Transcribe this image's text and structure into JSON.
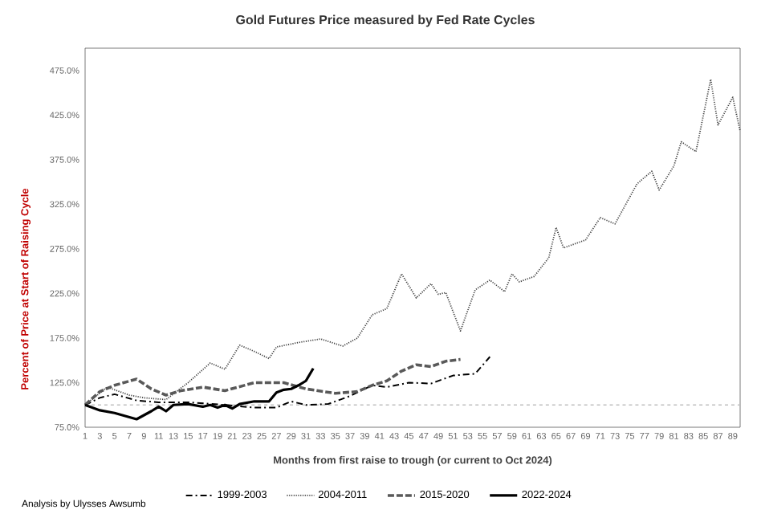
{
  "chart_data": {
    "type": "line",
    "title": "Gold Futures Price measured by Fed Rate Cycles",
    "xlabel": "Months from first raise to trough (or current to Oct 2024)",
    "ylabel": "Percent of Price at Start of Raising Cycle",
    "annotations": [
      "Analysis by Ulysses Awsumb"
    ],
    "xlim": [
      1,
      90
    ],
    "xticks": [
      1,
      3,
      5,
      7,
      9,
      11,
      13,
      15,
      17,
      19,
      21,
      23,
      25,
      27,
      29,
      31,
      33,
      35,
      37,
      39,
      41,
      43,
      45,
      47,
      49,
      51,
      53,
      55,
      57,
      59,
      61,
      63,
      65,
      67,
      69,
      71,
      73,
      75,
      77,
      79,
      81,
      83,
      85,
      87,
      89
    ],
    "ylim": [
      75,
      500
    ],
    "yticks": [
      {
        "value": 75,
        "label": "75.0%"
      },
      {
        "value": 125,
        "label": "125.0%"
      },
      {
        "value": 175,
        "label": "175.0%"
      },
      {
        "value": 225,
        "label": "225.0%"
      },
      {
        "value": 275,
        "label": "275.0%"
      },
      {
        "value": 325,
        "label": "325.0%"
      },
      {
        "value": 375,
        "label": "375.0%"
      },
      {
        "value": 425,
        "label": "425.0%"
      },
      {
        "value": 475,
        "label": "475.0%"
      }
    ],
    "ref_lines": [
      {
        "axis": "y",
        "value": 100,
        "color": "#bfbfbf",
        "line_style": "dashed"
      }
    ],
    "legend": "bottom",
    "grid": false,
    "marker": "none",
    "series": [
      {
        "name": "1999-2003",
        "color": "#000000",
        "line_style": "dashdot",
        "x": [
          1,
          3,
          5,
          8,
          11,
          15,
          20,
          24,
          27,
          29,
          31,
          34,
          37,
          40,
          42,
          45,
          48,
          51,
          54,
          56
        ],
        "values": [
          100,
          108,
          112,
          105,
          103,
          103,
          100,
          97,
          97,
          104,
          100,
          101,
          110,
          122,
          120,
          125,
          124,
          133,
          135,
          154
        ]
      },
      {
        "name": "2004-2011",
        "color": "#404040",
        "line_style": "dotted",
        "x": [
          1,
          4,
          7,
          9,
          12,
          15,
          18,
          20,
          22,
          24,
          26,
          27,
          30,
          33,
          36,
          38,
          40,
          42,
          44,
          46,
          48,
          49,
          50,
          52,
          54,
          56,
          58,
          59,
          60,
          62,
          64,
          65,
          66,
          69,
          71,
          73,
          76,
          78,
          79,
          81,
          82,
          84,
          86,
          87,
          89,
          90
        ],
        "values": [
          100,
          120,
          111,
          108,
          106,
          125,
          147,
          140,
          167,
          160,
          152,
          165,
          170,
          174,
          166,
          175,
          201,
          208,
          247,
          220,
          236,
          224,
          226,
          183,
          229,
          240,
          227,
          247,
          238,
          244,
          265,
          299,
          276,
          285,
          310,
          303,
          348,
          362,
          341,
          368,
          395,
          384,
          465,
          414,
          445,
          407
        ]
      },
      {
        "name": "2015-2020",
        "color": "#595959",
        "line_style": "dashed",
        "x": [
          1,
          3,
          5,
          8,
          10,
          12,
          14,
          17,
          20,
          24,
          28,
          31,
          35,
          38,
          40,
          42,
          44,
          46,
          48,
          50,
          52
        ],
        "values": [
          100,
          115,
          122,
          129,
          118,
          111,
          116,
          120,
          116,
          125,
          125,
          118,
          113,
          115,
          122,
          127,
          138,
          145,
          143,
          149,
          151
        ]
      },
      {
        "name": "2022-2024",
        "color": "#000000",
        "line_style": "solid",
        "x": [
          1,
          3,
          5,
          8,
          10,
          11,
          12,
          13,
          15,
          17,
          18,
          19,
          20,
          21,
          22,
          24,
          26,
          27,
          28,
          29,
          30,
          31,
          32
        ],
        "values": [
          100,
          94,
          91,
          84,
          93,
          98,
          93,
          100,
          101,
          98,
          100,
          97,
          100,
          96,
          101,
          104,
          104,
          114,
          117,
          118,
          122,
          127,
          141
        ]
      }
    ]
  }
}
